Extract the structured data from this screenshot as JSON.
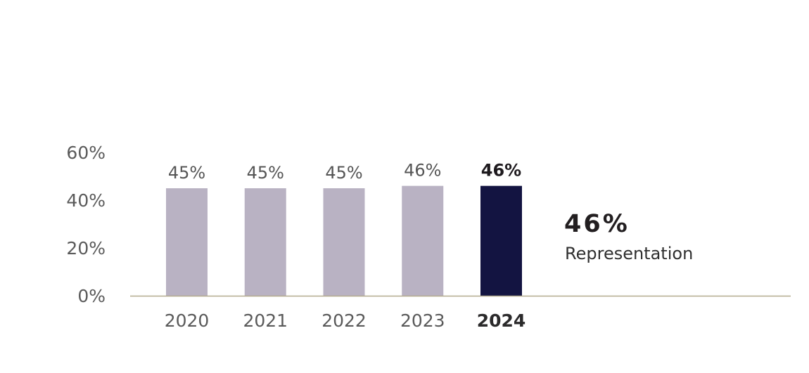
{
  "chart_data": {
    "type": "bar",
    "categories": [
      "2020",
      "2021",
      "2022",
      "2023",
      "2024"
    ],
    "values": [
      45,
      45,
      45,
      46,
      46
    ],
    "data_labels": [
      "45%",
      "45%",
      "45%",
      "46%",
      "46%"
    ],
    "highlight_index": 4,
    "y_ticks": [
      "0%",
      "20%",
      "40%",
      "60%"
    ],
    "y_tick_values": [
      0,
      20,
      40,
      60
    ],
    "ylim": [
      0,
      60
    ],
    "grid": false,
    "colors": {
      "bar": "#b9b2c3",
      "bar_highlight": "#131441",
      "axis": "#b3ab8e"
    }
  },
  "callout": {
    "value": "46%",
    "label": "Representation"
  }
}
